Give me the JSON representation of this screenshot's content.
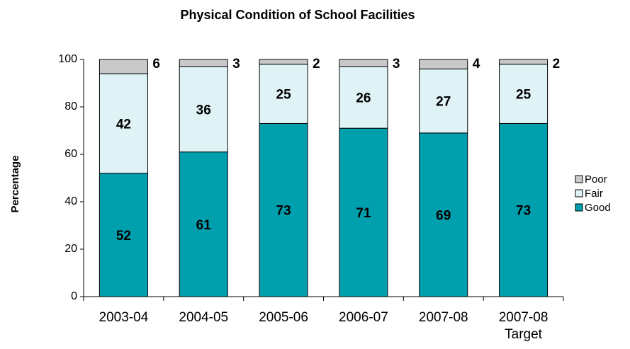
{
  "chart_data": {
    "type": "stacked_bar",
    "title": "Physical Condition of School Facilities",
    "y_label": "Percentage",
    "categories": [
      "2003-04",
      "2004-05",
      "2005-06",
      "2006-07",
      "2007-08",
      "2007-08 Target"
    ],
    "series": [
      {
        "name": "Good",
        "color": "#009fae",
        "values": [
          52,
          61,
          73,
          71,
          69,
          73
        ]
      },
      {
        "name": "Fair",
        "color": "#dff3f6",
        "values": [
          42,
          36,
          25,
          26,
          27,
          25
        ]
      },
      {
        "name": "Poor",
        "color": "#c9c9c9",
        "values": [
          6,
          3,
          2,
          3,
          4,
          2
        ]
      }
    ],
    "ylim": [
      0,
      100
    ],
    "yticks": [
      0,
      20,
      40,
      60,
      80,
      100
    ],
    "grid": false,
    "legend": "right"
  }
}
